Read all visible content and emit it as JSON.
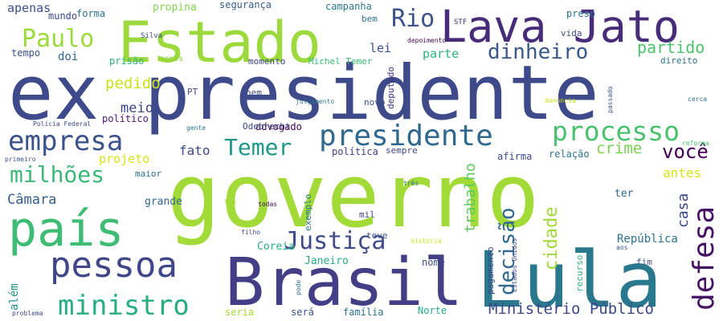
{
  "words": [
    {
      "text": "ex presidente",
      "color": "#3e4a89"
    },
    {
      "text": "governo",
      "color": "#a2da37"
    },
    {
      "text": "Estado",
      "color": "#9bd93c"
    },
    {
      "text": "Lava Jato",
      "color": "#472c7a"
    },
    {
      "text": "Lula",
      "color": "#2a788e"
    },
    {
      "text": "Brasil",
      "color": "#433e85"
    },
    {
      "text": "país",
      "color": "#3fbc73"
    },
    {
      "text": "pessoa",
      "color": "#404688"
    },
    {
      "text": "presidente",
      "color": "#31688e"
    },
    {
      "text": "empresa",
      "color": "#3b528b"
    },
    {
      "text": "processo",
      "color": "#4ac16d"
    },
    {
      "text": "defesa",
      "color": "#471365"
    },
    {
      "text": "ministro",
      "color": "#27ad81"
    },
    {
      "text": "Justiça",
      "color": "#3e4a89"
    },
    {
      "text": "decisão",
      "color": "#31688e"
    },
    {
      "text": "Paulo",
      "color": "#9bd93c"
    },
    {
      "text": "milhões",
      "color": "#3aba76"
    },
    {
      "text": "dinheiro",
      "color": "#38588c"
    },
    {
      "text": "Temer",
      "color": "#1f978b"
    },
    {
      "text": "Rio",
      "color": "#3b528b"
    },
    {
      "text": "cidade",
      "color": "#a0da39"
    },
    {
      "text": "você",
      "color": "#440154"
    },
    {
      "text": "Ministério Público",
      "color": "#3e4989"
    },
    {
      "text": "partido",
      "color": "#4cc26c"
    },
    {
      "text": "pedido",
      "color": "#cae11f"
    },
    {
      "text": "crime",
      "color": "#7ad151"
    },
    {
      "text": "trabalho",
      "color": "#5ec962"
    },
    {
      "text": "casa",
      "color": "#3f4889"
    },
    {
      "text": "Câmara",
      "color": "#35608d"
    },
    {
      "text": "meio",
      "color": "#3f4788"
    },
    {
      "text": "fato",
      "color": "#3e4989"
    },
    {
      "text": "apenas",
      "color": "#3c508b"
    },
    {
      "text": "parte",
      "color": "#2db27d"
    },
    {
      "text": "lei",
      "color": "#3b528b"
    },
    {
      "text": "antes",
      "color": "#d8e219"
    },
    {
      "text": "projeto",
      "color": "#d8e219"
    },
    {
      "text": "doi",
      "color": "#31688e"
    },
    {
      "text": "República",
      "color": "#2c728e"
    },
    {
      "text": "além",
      "color": "#21918c"
    },
    {
      "text": "Janeiro",
      "color": "#25ab82"
    },
    {
      "text": "ter",
      "color": "#31688e"
    },
    {
      "text": "grande",
      "color": "#31688e"
    },
    {
      "text": "Coreia",
      "color": "#26ad81"
    },
    {
      "text": "nome",
      "color": "#3e4989"
    },
    {
      "text": "família",
      "color": "#2d708e"
    },
    {
      "text": "seria",
      "color": "#a5db36"
    },
    {
      "text": "será",
      "color": "#3b528b"
    },
    {
      "text": "Norte",
      "color": "#22a884"
    },
    {
      "text": "político",
      "color": "#481769"
    },
    {
      "text": "advogado",
      "color": "#440154"
    },
    {
      "text": "política",
      "color": "#433e85"
    },
    {
      "text": "afirma",
      "color": "#3e4989"
    },
    {
      "text": "relação",
      "color": "#2a768e"
    },
    {
      "text": "preso",
      "color": "#2c728e"
    },
    {
      "text": "segurança",
      "color": "#355f8d"
    },
    {
      "text": "campanha",
      "color": "#2a788e"
    },
    {
      "text": "propina",
      "color": "#7fd34e"
    },
    {
      "text": "forma",
      "color": "#2c728e"
    },
    {
      "text": "mundo",
      "color": "#3e4989"
    },
    {
      "text": "tempo",
      "color": "#3b528b"
    },
    {
      "text": "prisão",
      "color": "#2db27d"
    },
    {
      "text": "momento",
      "color": "#414487"
    },
    {
      "text": "Michel Temer",
      "color": "#3aba76"
    },
    {
      "text": "nem",
      "color": "#3e4989"
    },
    {
      "text": "PT",
      "color": "#3e4989"
    },
    {
      "text": "Odebrecht",
      "color": "#3e4989"
    },
    {
      "text": "deputado",
      "color": "#46327e"
    },
    {
      "text": "novo",
      "color": "#3b528b"
    },
    {
      "text": "sempre",
      "color": "#3e4989"
    },
    {
      "text": "mil",
      "color": "#3e4989"
    },
    {
      "text": "teve",
      "color": "#3b528b"
    },
    {
      "text": "maior",
      "color": "#2d708e"
    },
    {
      "text": "exemplo",
      "color": "#2a788e"
    },
    {
      "text": "recurso",
      "color": "#2db27d"
    },
    {
      "text": "fim",
      "color": "#3b528b"
    },
    {
      "text": "pagamento",
      "color": "#3e4989"
    },
    {
      "text": "direito",
      "color": "#2d708e"
    },
    {
      "text": "vida",
      "color": "#3e4989"
    },
    {
      "text": "bem",
      "color": "#2c728e"
    },
    {
      "text": "menos",
      "color": "#94d840"
    },
    {
      "text": "Silva",
      "color": "#3e4989"
    },
    {
      "text": "STF",
      "color": "#482878"
    },
    {
      "text": "depoimento",
      "color": "#440154"
    },
    {
      "text": "Polícia Federal",
      "color": "#3e4989"
    },
    {
      "text": "julgamento",
      "color": "#2c728e"
    },
    {
      "text": "gente",
      "color": "#2c728e"
    },
    {
      "text": "primeiro",
      "color": "#3b528b"
    },
    {
      "text": "denúncia",
      "color": "#cde11d"
    },
    {
      "text": "passado",
      "color": "#3b528b"
    },
    {
      "text": "cerca",
      "color": "#2a788e"
    },
    {
      "text": "reforma",
      "color": "#4ac16d"
    },
    {
      "text": "três",
      "color": "#2c728e"
    },
    {
      "text": "todas",
      "color": "#440154"
    },
    {
      "text": "têm",
      "color": "#a0da39"
    },
    {
      "text": "filho",
      "color": "#3e4989"
    },
    {
      "text": "história",
      "color": "#cde11d"
    },
    {
      "text": "aos",
      "color": "#3b528b"
    },
    {
      "text": "Estados Unidos",
      "color": "#3e4989"
    },
    {
      "text": "pode",
      "color": "#2c728e"
    },
    {
      "text": "problema",
      "color": "#3e4989"
    }
  ]
}
